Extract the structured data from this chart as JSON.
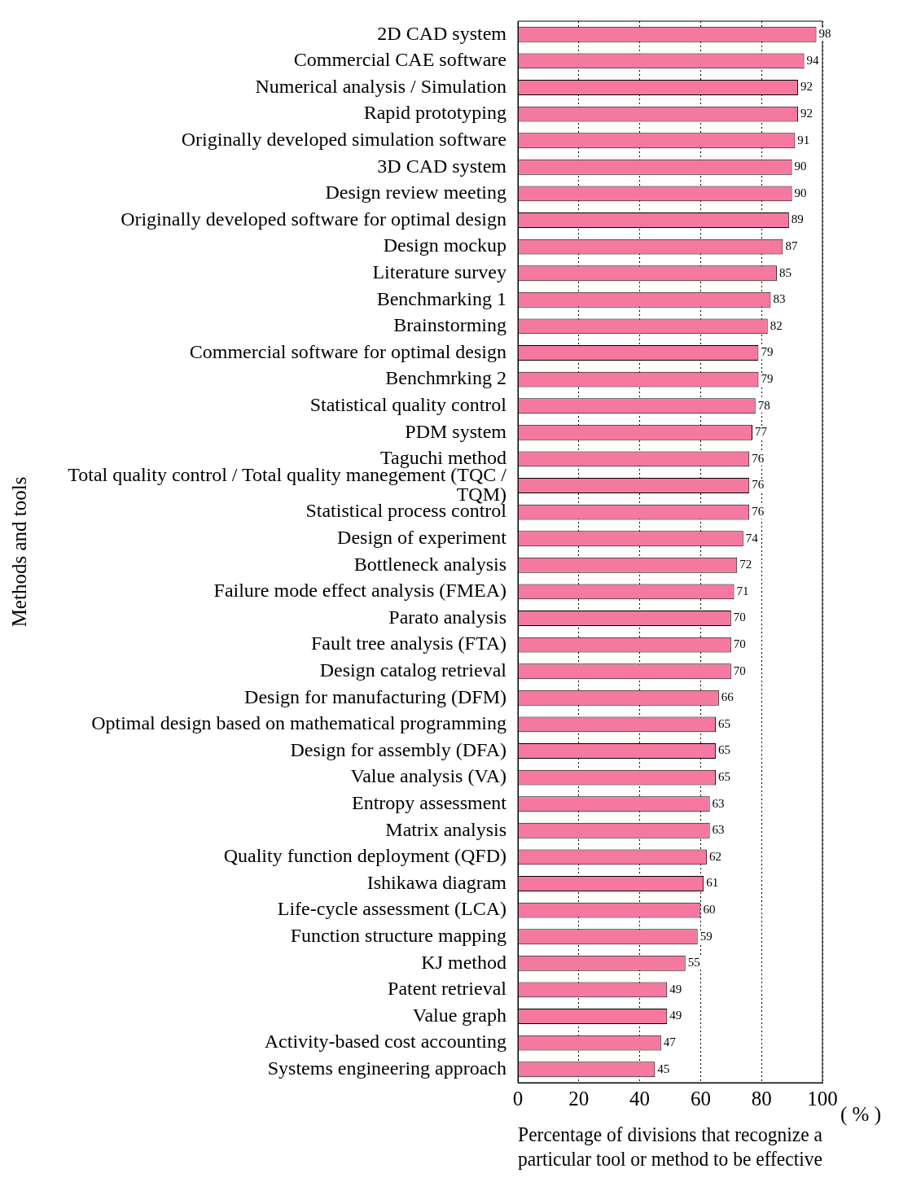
{
  "chart_data": {
    "type": "bar",
    "orientation": "horizontal",
    "xlabel": "Percentage of divisions that recognize a particular tool or method to be effective",
    "ylabel": "Methods and tools",
    "annotations": [
      "( % )"
    ],
    "categories": [
      "2D CAD system",
      "Commercial CAE software",
      "Numerical analysis / Simulation",
      "Rapid prototyping",
      "Originally developed simulation software",
      "3D CAD system",
      "Design review meeting",
      "Originally developed software for optimal design",
      "Design mockup",
      "Literature survey",
      "Benchmarking 1",
      "Brainstorming",
      "Commercial software for optimal design",
      "Benchmrking 2",
      "Statistical quality control",
      "PDM system",
      "Taguchi method",
      "Total quality control / Total quality manegement (TQC / TQM)",
      "Statistical process control",
      "Design of experiment",
      "Bottleneck analysis",
      "Failure mode effect analysis (FMEA)",
      "Parato analysis",
      "Fault tree analysis (FTA)",
      "Design catalog retrieval",
      "Design for manufacturing (DFM)",
      "Optimal design based on mathematical programming",
      "Design for assembly (DFA)",
      "Value analysis (VA)",
      "Entropy assessment",
      "Matrix analysis",
      "Quality function deployment (QFD)",
      "Ishikawa diagram",
      "Life-cycle assessment (LCA)",
      "Function structure mapping",
      "KJ method",
      "Patent retrieval",
      "Value graph",
      "Activity-based cost accounting",
      "Systems engineering approach"
    ],
    "values": [
      98,
      94,
      92,
      92,
      91,
      90,
      90,
      89,
      87,
      85,
      83,
      82,
      79,
      79,
      78,
      77,
      76,
      76,
      76,
      74,
      72,
      71,
      70,
      70,
      70,
      66,
      65,
      65,
      65,
      63,
      63,
      62,
      61,
      60,
      59,
      55,
      49,
      49,
      47,
      45
    ],
    "color": "#f5799f",
    "data_labels": true,
    "xlim": [
      0,
      100
    ],
    "xticks": [
      0,
      20,
      40,
      60,
      80,
      100
    ],
    "grid": "x",
    "legend": false
  }
}
